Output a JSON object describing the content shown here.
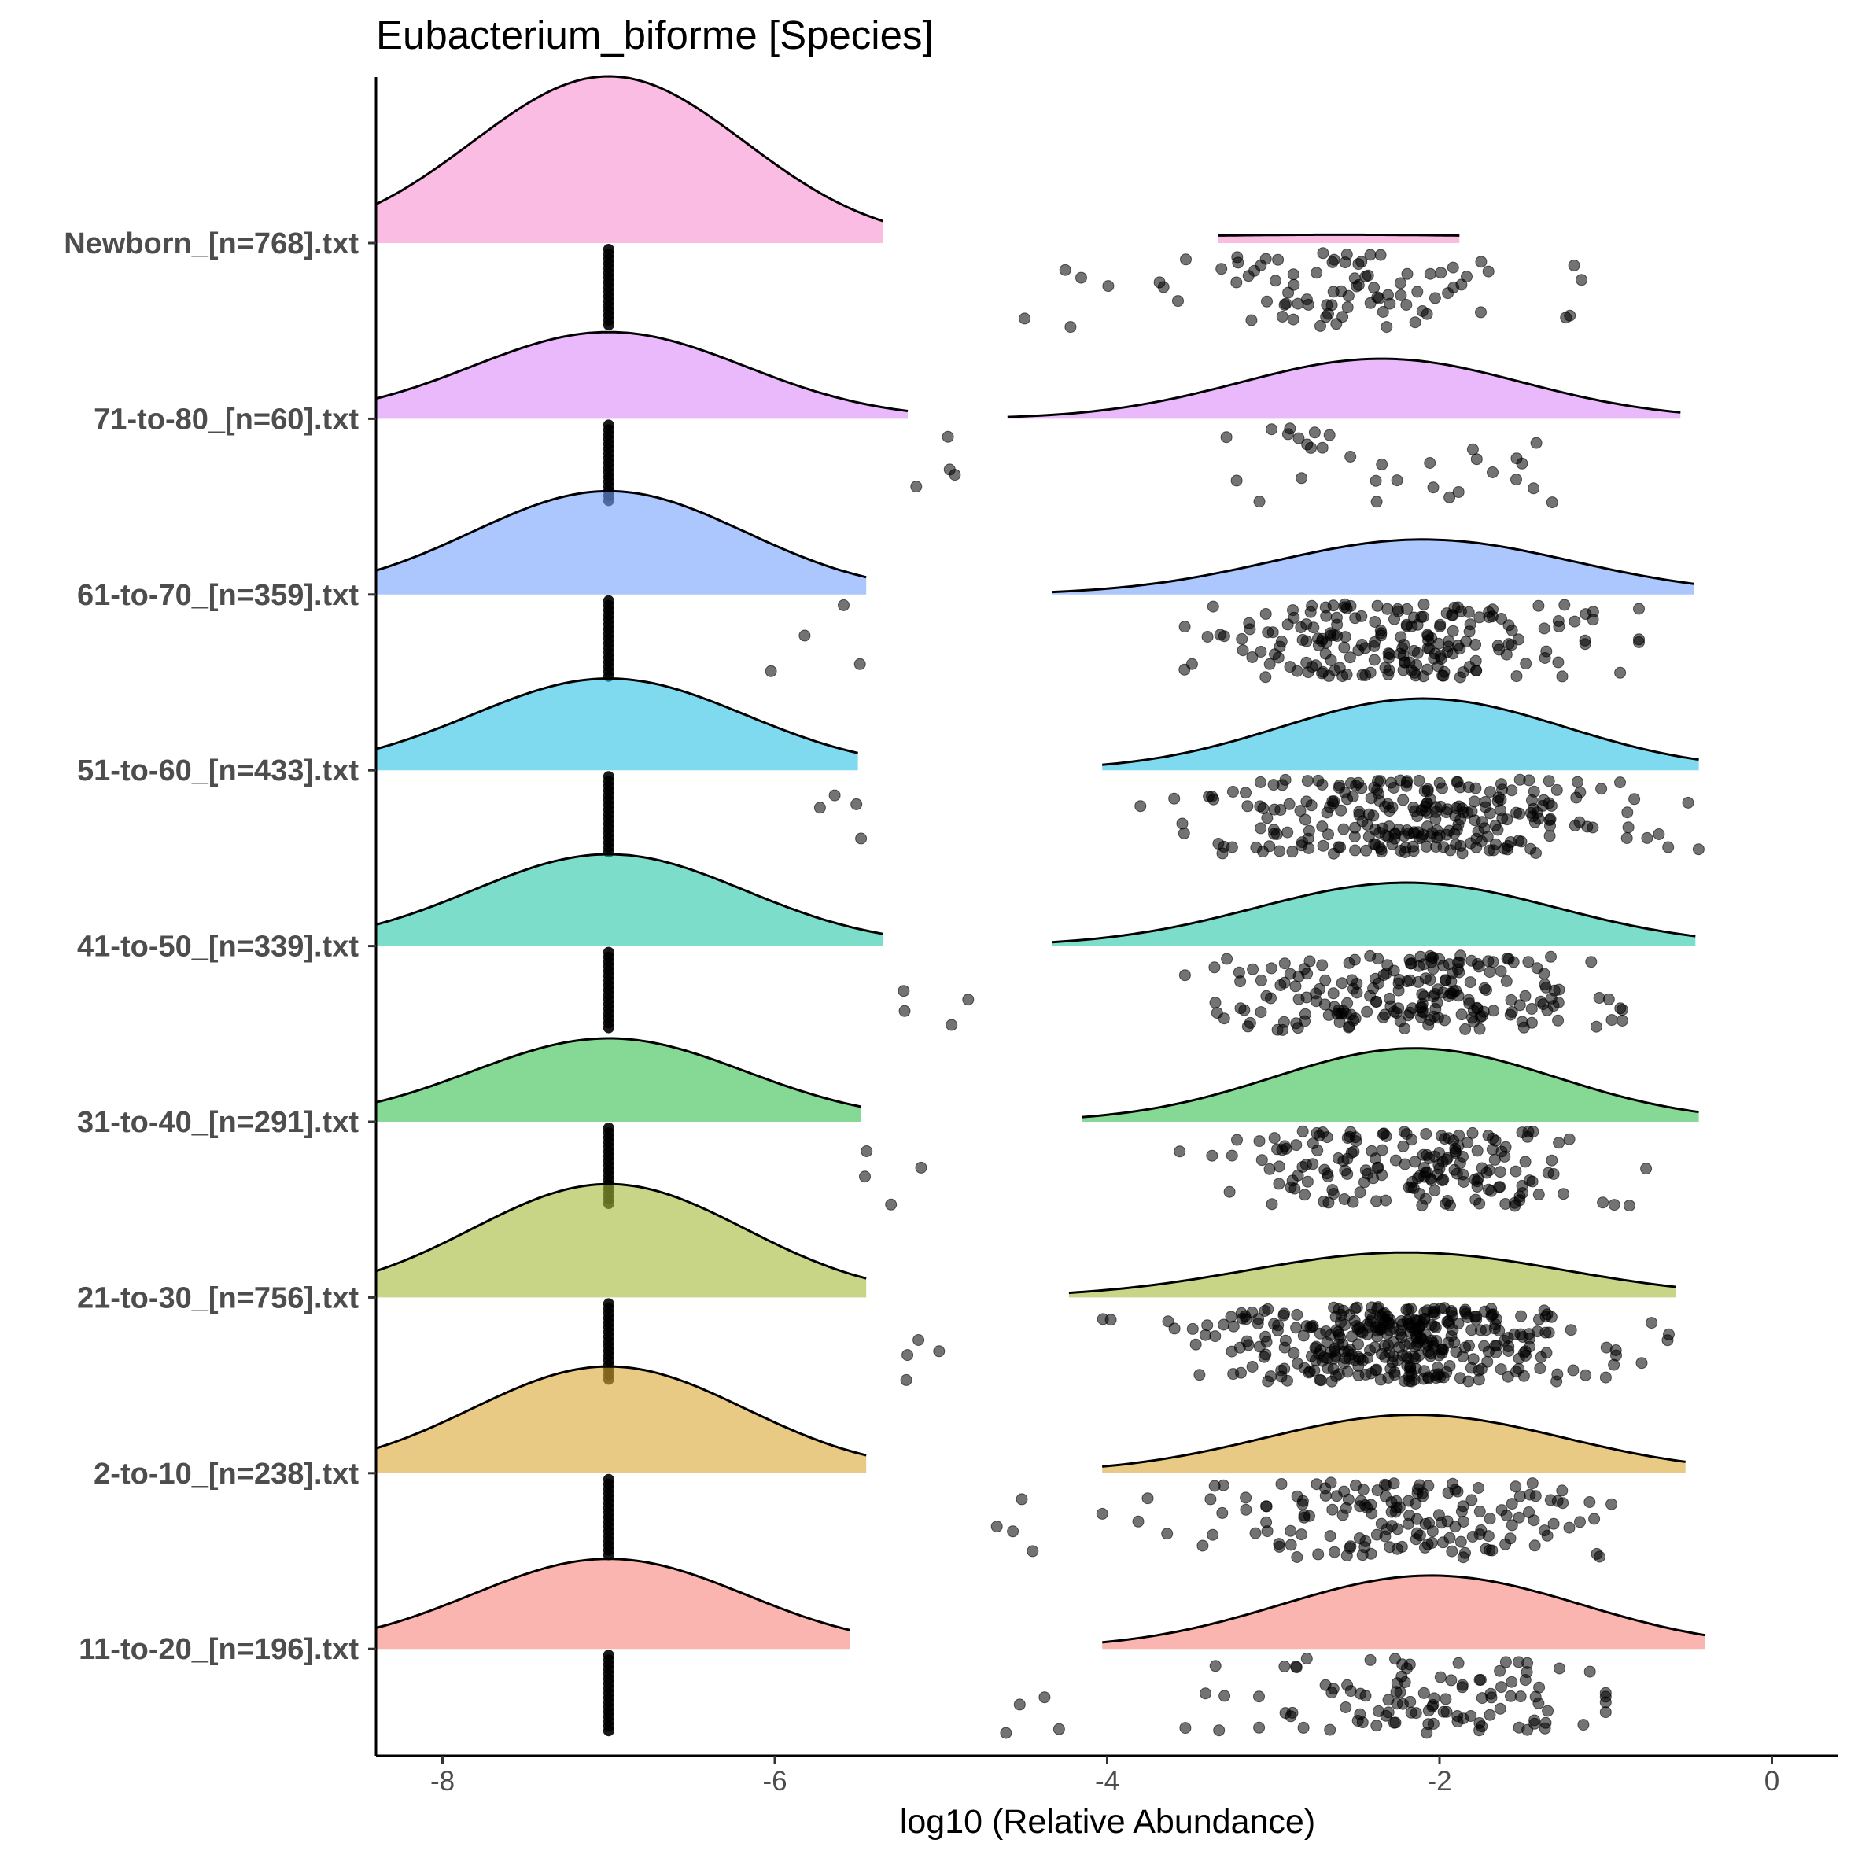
{
  "chart_data": {
    "type": "raincloud",
    "title": "Eubacterium_biforme [Species]",
    "xlabel": "log10 (Relative Abundance)",
    "ylabel": "",
    "xlim": [
      -8.4,
      0.4
    ],
    "xticks": [
      -8,
      -6,
      -4,
      -2,
      0
    ],
    "xtick_labels": [
      "-8",
      "-6",
      "-4",
      "-2",
      "0"
    ],
    "legend": "none",
    "grid": false,
    "series": [
      {
        "name": "Newborn_[n=768].txt",
        "color": "#F98FD0",
        "zero_mode": -7.0,
        "zero_sd": 0.82,
        "zero_range": [
          -8.4,
          -5.35
        ],
        "zero_peak": 1.0,
        "nonzero_mode": -2.6,
        "nonzero_sd": 1.6,
        "nonzero_range": [
          -3.33,
          -1.88
        ],
        "nonzero_peak": 0.05,
        "n_detected": 88,
        "points_range": [
          -4.6,
          -0.78
        ],
        "points_mean": -2.55
      },
      {
        "name": "71-to-80_[n=60].txt",
        "color": "#DB8AF9",
        "zero_mode": -7.0,
        "zero_sd": 0.82,
        "zero_range": [
          -8.4,
          -5.2
        ],
        "zero_peak": 0.52,
        "nonzero_mode": -2.35,
        "nonzero_sd": 0.85,
        "nonzero_range": [
          -4.6,
          -0.55
        ],
        "nonzero_peak": 0.36,
        "n_detected": 35,
        "points_range": [
          -5.3,
          -1.3
        ],
        "points_mean": -2.6
      },
      {
        "name": "61-to-70_[n=359].txt",
        "color": "#74A2FB",
        "zero_mode": -7.0,
        "zero_sd": 0.82,
        "zero_range": [
          -8.4,
          -5.45
        ],
        "zero_peak": 0.62,
        "nonzero_mode": -2.1,
        "nonzero_sd": 0.9,
        "nonzero_range": [
          -4.33,
          -0.47
        ],
        "nonzero_peak": 0.33,
        "n_detected": 200,
        "points_range": [
          -6.05,
          -0.8
        ],
        "points_mean": -2.2
      },
      {
        "name": "51-to-60_[n=433].txt",
        "color": "#2AC2E6",
        "zero_mode": -7.0,
        "zero_sd": 0.82,
        "zero_range": [
          -8.4,
          -5.5
        ],
        "zero_peak": 0.55,
        "nonzero_mode": -2.1,
        "nonzero_sd": 0.85,
        "nonzero_range": [
          -4.03,
          -0.44
        ],
        "nonzero_peak": 0.43,
        "n_detected": 260,
        "points_range": [
          -5.85,
          -0.44
        ],
        "points_mean": -2.15
      },
      {
        "name": "41-to-50_[n=339].txt",
        "color": "#27C6A9",
        "zero_mode": -7.0,
        "zero_sd": 0.82,
        "zero_range": [
          -8.4,
          -5.35
        ],
        "zero_peak": 0.55,
        "nonzero_mode": -2.2,
        "nonzero_sd": 0.9,
        "nonzero_range": [
          -4.33,
          -0.46
        ],
        "nonzero_peak": 0.38,
        "n_detected": 210,
        "points_range": [
          -5.4,
          -0.9
        ],
        "points_mean": -2.2
      },
      {
        "name": "31-to-40_[n=291].txt",
        "color": "#33BF4E",
        "zero_mode": -7.0,
        "zero_sd": 0.82,
        "zero_range": [
          -8.4,
          -5.48
        ],
        "zero_peak": 0.5,
        "nonzero_mode": -2.15,
        "nonzero_sd": 0.85,
        "nonzero_range": [
          -4.15,
          -0.44
        ],
        "nonzero_peak": 0.44,
        "n_detected": 180,
        "points_range": [
          -5.6,
          -0.6
        ],
        "points_mean": -2.2
      },
      {
        "name": "21-to-30_[n=756].txt",
        "color": "#A4B835",
        "zero_mode": -7.0,
        "zero_sd": 0.82,
        "zero_range": [
          -8.4,
          -5.45
        ],
        "zero_peak": 0.68,
        "nonzero_mode": -2.2,
        "nonzero_sd": 0.95,
        "nonzero_range": [
          -4.23,
          -0.58
        ],
        "nonzero_peak": 0.27,
        "n_detected": 360,
        "points_range": [
          -5.45,
          -0.62
        ],
        "points_mean": -2.25
      },
      {
        "name": "2-to-10_[n=238].txt",
        "color": "#D9A634",
        "zero_mode": -7.0,
        "zero_sd": 0.82,
        "zero_range": [
          -8.4,
          -5.45
        ],
        "zero_peak": 0.64,
        "nonzero_mode": -2.15,
        "nonzero_sd": 0.9,
        "nonzero_range": [
          -4.03,
          -0.52
        ],
        "nonzero_peak": 0.35,
        "n_detected": 160,
        "points_range": [
          -5.0,
          -0.95
        ],
        "points_mean": -2.2
      },
      {
        "name": "11-to-20_[n=196].txt",
        "color": "#F8847C",
        "zero_mode": -7.0,
        "zero_sd": 0.82,
        "zero_range": [
          -8.4,
          -5.55
        ],
        "zero_peak": 0.54,
        "nonzero_mode": -2.05,
        "nonzero_sd": 0.9,
        "nonzero_range": [
          -4.03,
          -0.4
        ],
        "nonzero_peak": 0.44,
        "n_detected": 110,
        "points_range": [
          -4.65,
          -1.0
        ],
        "points_mean": -2.1
      }
    ]
  }
}
